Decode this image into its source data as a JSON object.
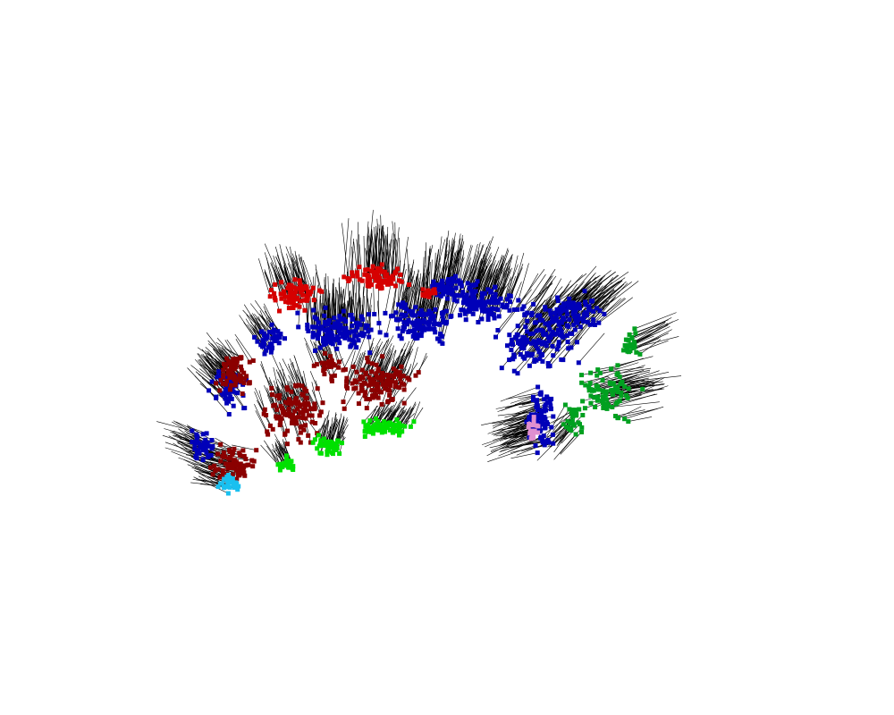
{
  "scene": {
    "background": "#ffffff",
    "normal_color": "#000000",
    "clusters": [
      {
        "name": "red",
        "color": "#d60000"
      },
      {
        "name": "dark-red",
        "color": "#8b0000"
      },
      {
        "name": "blue",
        "color": "#0000b8"
      },
      {
        "name": "bright-green",
        "color": "#00e000"
      },
      {
        "name": "dark-green",
        "color": "#00a020"
      },
      {
        "name": "cyan",
        "color": "#19c0f0"
      },
      {
        "name": "pink",
        "color": "#e090d0"
      }
    ]
  }
}
